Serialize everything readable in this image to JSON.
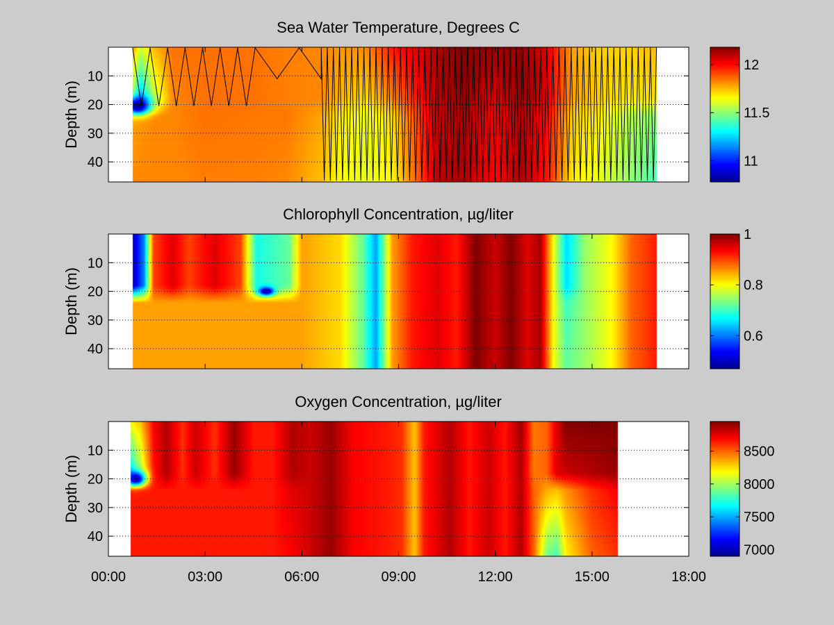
{
  "colors": {
    "figure_background": "#cccccc",
    "axes_background": "#ffffff",
    "colormap": "jet"
  },
  "x_axis": {
    "tick_labels": [
      "00:00",
      "03:00",
      "06:00",
      "09:00",
      "12:00",
      "15:00",
      "18:00"
    ],
    "range_hours": [
      0,
      18
    ]
  },
  "chart_data": [
    {
      "type": "heatmap",
      "title": "Sea Water Temperature, Degrees C",
      "xlabel": "",
      "ylabel": "Depth (m)",
      "y_ticks": [
        10,
        20,
        30,
        40
      ],
      "ylim": [
        0,
        47
      ],
      "y_reversed": true,
      "grid": "dotted horizontal at y ticks",
      "x_tick_labels_visible": false,
      "data_extent_hours": [
        0.75,
        17.0
      ],
      "clim": [
        10.78,
        12.18
      ],
      "colorbar_ticks": [
        11,
        11.5,
        12
      ],
      "colorbar_tick_labels": [
        "11",
        "11.5",
        "12"
      ],
      "profiles": [
        {
          "t": 0.75,
          "surface": 11.8,
          "upper": 11.5,
          "mid": 11.78,
          "bottom": 11.82
        },
        {
          "t": 1.0,
          "surface": 11.6,
          "upper": 11.2,
          "mid": 11.8,
          "bottom": 11.82
        },
        {
          "t": 1.4,
          "surface": 11.75,
          "upper": 11.55,
          "mid": 11.82,
          "bottom": 11.82
        },
        {
          "t": 2.0,
          "surface": 11.85,
          "upper": 11.82,
          "mid": 11.82,
          "bottom": 11.82
        },
        {
          "t": 3.0,
          "surface": 11.85,
          "upper": 11.85,
          "mid": 11.85,
          "bottom": 11.83
        },
        {
          "t": 4.5,
          "surface": 11.85,
          "upper": 11.85,
          "mid": 11.84,
          "bottom": 11.83
        },
        {
          "t": 5.5,
          "surface": 11.83,
          "upper": 11.83,
          "mid": 11.84,
          "bottom": 11.82
        },
        {
          "t": 6.6,
          "surface": 11.82,
          "upper": 11.82,
          "mid": 11.78,
          "bottom": 11.74
        },
        {
          "t": 7.2,
          "surface": 11.8,
          "upper": 11.75,
          "mid": 11.68,
          "bottom": 11.65
        },
        {
          "t": 8.0,
          "surface": 11.82,
          "upper": 11.7,
          "mid": 11.63,
          "bottom": 11.62
        },
        {
          "t": 8.8,
          "surface": 11.98,
          "upper": 11.82,
          "mid": 11.7,
          "bottom": 11.66
        },
        {
          "t": 9.6,
          "surface": 12.05,
          "upper": 11.98,
          "mid": 11.92,
          "bottom": 11.88
        },
        {
          "t": 10.2,
          "surface": 12.12,
          "upper": 12.1,
          "mid": 12.08,
          "bottom": 12.1
        },
        {
          "t": 11.0,
          "surface": 12.18,
          "upper": 12.15,
          "mid": 12.12,
          "bottom": 12.12
        },
        {
          "t": 12.0,
          "surface": 12.15,
          "upper": 12.05,
          "mid": 12.02,
          "bottom": 12.0
        },
        {
          "t": 12.8,
          "surface": 12.16,
          "upper": 12.15,
          "mid": 12.12,
          "bottom": 12.12
        },
        {
          "t": 13.6,
          "surface": 12.05,
          "upper": 12.05,
          "mid": 12.0,
          "bottom": 11.98
        },
        {
          "t": 14.4,
          "surface": 11.78,
          "upper": 11.78,
          "mid": 11.72,
          "bottom": 11.68
        },
        {
          "t": 15.2,
          "surface": 11.72,
          "upper": 11.72,
          "mid": 11.68,
          "bottom": 11.62
        },
        {
          "t": 16.2,
          "surface": 11.72,
          "upper": 11.68,
          "mid": 11.55,
          "bottom": 11.5
        },
        {
          "t": 17.0,
          "surface": 11.75,
          "upper": 11.7,
          "mid": 11.5,
          "bottom": 11.4
        }
      ],
      "blobs": [
        {
          "t": 0.9,
          "z": 20.5,
          "value": 10.78,
          "rt": 0.4,
          "rz": 3.0
        }
      ],
      "sampling_track": true
    },
    {
      "type": "heatmap",
      "title": "Chlorophyll Concentration, µg/liter",
      "xlabel": "",
      "ylabel": "Depth (m)",
      "y_ticks": [
        10,
        20,
        30,
        40
      ],
      "ylim": [
        0,
        47
      ],
      "y_reversed": true,
      "grid": "dotted horizontal at y ticks",
      "x_tick_labels_visible": false,
      "data_extent_hours": [
        0.75,
        17.0
      ],
      "clim": [
        0.47,
        1.0
      ],
      "colorbar_ticks": [
        0.6,
        0.8,
        1
      ],
      "colorbar_tick_labels": [
        "0.6",
        "0.8",
        "1"
      ],
      "profiles": [
        {
          "t": 0.75,
          "surface": 0.5,
          "upper": 0.5,
          "mid": 0.85,
          "bottom": 0.85
        },
        {
          "t": 1.1,
          "surface": 0.6,
          "upper": 0.6,
          "mid": 0.85,
          "bottom": 0.85
        },
        {
          "t": 1.4,
          "surface": 0.9,
          "upper": 0.9,
          "mid": 0.85,
          "bottom": 0.85
        },
        {
          "t": 2.0,
          "surface": 0.95,
          "upper": 0.95,
          "mid": 0.85,
          "bottom": 0.85
        },
        {
          "t": 2.5,
          "surface": 0.9,
          "upper": 0.9,
          "mid": 0.85,
          "bottom": 0.85
        },
        {
          "t": 3.3,
          "surface": 0.95,
          "upper": 0.95,
          "mid": 0.85,
          "bottom": 0.85
        },
        {
          "t": 4.1,
          "surface": 0.9,
          "upper": 0.9,
          "mid": 0.85,
          "bottom": 0.85
        },
        {
          "t": 4.6,
          "surface": 0.68,
          "upper": 0.68,
          "mid": 0.85,
          "bottom": 0.85
        },
        {
          "t": 5.6,
          "surface": 0.72,
          "upper": 0.72,
          "mid": 0.85,
          "bottom": 0.85
        },
        {
          "t": 6.0,
          "surface": 0.85,
          "upper": 0.85,
          "mid": 0.85,
          "bottom": 0.85
        },
        {
          "t": 7.2,
          "surface": 0.82,
          "upper": 0.82,
          "mid": 0.82,
          "bottom": 0.82
        },
        {
          "t": 7.9,
          "surface": 0.72,
          "upper": 0.72,
          "mid": 0.72,
          "bottom": 0.72
        },
        {
          "t": 8.3,
          "surface": 0.62,
          "upper": 0.62,
          "mid": 0.62,
          "bottom": 0.62
        },
        {
          "t": 8.8,
          "surface": 0.85,
          "upper": 0.85,
          "mid": 0.85,
          "bottom": 0.85
        },
        {
          "t": 9.4,
          "surface": 0.92,
          "upper": 0.92,
          "mid": 0.92,
          "bottom": 0.92
        },
        {
          "t": 10.2,
          "surface": 0.95,
          "upper": 0.95,
          "mid": 0.95,
          "bottom": 0.95
        },
        {
          "t": 10.8,
          "surface": 0.92,
          "upper": 0.92,
          "mid": 0.92,
          "bottom": 0.92
        },
        {
          "t": 11.4,
          "surface": 1.0,
          "upper": 1.0,
          "mid": 1.0,
          "bottom": 1.0
        },
        {
          "t": 12.0,
          "surface": 0.96,
          "upper": 0.96,
          "mid": 0.96,
          "bottom": 0.96
        },
        {
          "t": 12.5,
          "surface": 1.0,
          "upper": 1.0,
          "mid": 1.0,
          "bottom": 1.0
        },
        {
          "t": 13.0,
          "surface": 0.95,
          "upper": 0.95,
          "mid": 0.95,
          "bottom": 0.95
        },
        {
          "t": 13.4,
          "surface": 0.98,
          "upper": 0.98,
          "mid": 0.98,
          "bottom": 0.98
        },
        {
          "t": 13.8,
          "surface": 0.8,
          "upper": 0.8,
          "mid": 0.8,
          "bottom": 0.8
        },
        {
          "t": 14.2,
          "surface": 0.65,
          "upper": 0.65,
          "mid": 0.7,
          "bottom": 0.72
        },
        {
          "t": 14.8,
          "surface": 0.75,
          "upper": 0.75,
          "mid": 0.75,
          "bottom": 0.75
        },
        {
          "t": 15.6,
          "surface": 0.8,
          "upper": 0.8,
          "mid": 0.8,
          "bottom": 0.8
        },
        {
          "t": 16.2,
          "surface": 0.88,
          "upper": 0.88,
          "mid": 0.88,
          "bottom": 0.88
        },
        {
          "t": 17.0,
          "surface": 0.92,
          "upper": 0.92,
          "mid": 0.92,
          "bottom": 0.92
        }
      ],
      "blobs": [
        {
          "t": 4.9,
          "z": 20.0,
          "value": 0.47,
          "rt": 0.25,
          "rz": 1.5
        }
      ],
      "sampling_track": false
    },
    {
      "type": "heatmap",
      "title": "Oxygen Concentration, µg/liter",
      "xlabel": "",
      "ylabel": "Depth (m)",
      "y_ticks": [
        10,
        20,
        30,
        40
      ],
      "ylim": [
        0,
        47
      ],
      "y_reversed": true,
      "grid": "dotted horizontal at y ticks",
      "x_tick_labels_visible": true,
      "data_extent_hours": [
        0.7,
        15.8
      ],
      "clim": [
        6900,
        8950
      ],
      "colorbar_ticks": [
        7000,
        7500,
        8000,
        8500
      ],
      "colorbar_tick_labels": [
        "7000",
        "7500",
        "8000",
        "8500"
      ],
      "profiles": [
        {
          "t": 0.7,
          "surface": 8200,
          "upper": 7600,
          "mid": 8650,
          "bottom": 8650
        },
        {
          "t": 1.0,
          "surface": 8300,
          "upper": 8000,
          "mid": 8650,
          "bottom": 8650
        },
        {
          "t": 1.4,
          "surface": 8700,
          "upper": 8650,
          "mid": 8650,
          "bottom": 8650
        },
        {
          "t": 1.8,
          "surface": 8850,
          "upper": 8850,
          "mid": 8650,
          "bottom": 8650
        },
        {
          "t": 2.3,
          "surface": 8600,
          "upper": 8600,
          "mid": 8650,
          "bottom": 8650
        },
        {
          "t": 2.7,
          "surface": 8800,
          "upper": 8800,
          "mid": 8650,
          "bottom": 8650
        },
        {
          "t": 3.3,
          "surface": 8600,
          "upper": 8600,
          "mid": 8650,
          "bottom": 8650
        },
        {
          "t": 3.9,
          "surface": 8900,
          "upper": 8900,
          "mid": 8650,
          "bottom": 8650
        },
        {
          "t": 4.5,
          "surface": 8650,
          "upper": 8650,
          "mid": 8650,
          "bottom": 8650
        },
        {
          "t": 5.1,
          "surface": 8650,
          "upper": 8650,
          "mid": 8650,
          "bottom": 8650
        },
        {
          "t": 5.7,
          "surface": 8850,
          "upper": 8850,
          "mid": 8750,
          "bottom": 8700
        },
        {
          "t": 6.3,
          "surface": 8800,
          "upper": 8800,
          "mid": 8800,
          "bottom": 8800
        },
        {
          "t": 6.9,
          "surface": 8900,
          "upper": 8900,
          "mid": 8900,
          "bottom": 8900
        },
        {
          "t": 7.6,
          "surface": 8700,
          "upper": 8700,
          "mid": 8700,
          "bottom": 8700
        },
        {
          "t": 8.6,
          "surface": 8650,
          "upper": 8650,
          "mid": 8650,
          "bottom": 8650
        },
        {
          "t": 9.1,
          "surface": 8600,
          "upper": 8600,
          "mid": 8600,
          "bottom": 8600
        },
        {
          "t": 9.5,
          "surface": 8300,
          "upper": 8300,
          "mid": 8300,
          "bottom": 8300
        },
        {
          "t": 9.8,
          "surface": 8650,
          "upper": 8650,
          "mid": 8650,
          "bottom": 8650
        },
        {
          "t": 10.6,
          "surface": 8850,
          "upper": 8850,
          "mid": 8850,
          "bottom": 8850
        },
        {
          "t": 11.2,
          "surface": 8650,
          "upper": 8650,
          "mid": 8650,
          "bottom": 8650
        },
        {
          "t": 11.8,
          "surface": 8800,
          "upper": 8800,
          "mid": 8800,
          "bottom": 8800
        },
        {
          "t": 12.3,
          "surface": 8650,
          "upper": 8650,
          "mid": 8650,
          "bottom": 8650
        },
        {
          "t": 12.8,
          "surface": 8900,
          "upper": 8850,
          "mid": 8850,
          "bottom": 8850
        },
        {
          "t": 13.2,
          "surface": 8450,
          "upper": 8450,
          "mid": 8500,
          "bottom": 8500
        },
        {
          "t": 13.6,
          "surface": 8500,
          "upper": 8500,
          "mid": 8350,
          "bottom": 7900
        },
        {
          "t": 13.9,
          "surface": 8750,
          "upper": 8750,
          "mid": 8300,
          "bottom": 7800
        },
        {
          "t": 14.2,
          "surface": 8950,
          "upper": 8800,
          "mid": 8400,
          "bottom": 8200
        },
        {
          "t": 15.0,
          "surface": 8950,
          "upper": 8850,
          "mid": 8600,
          "bottom": 8500
        },
        {
          "t": 15.8,
          "surface": 8950,
          "upper": 8900,
          "mid": 8700,
          "bottom": 8600
        }
      ],
      "blobs": [
        {
          "t": 0.85,
          "z": 20.0,
          "value": 6950,
          "rt": 0.3,
          "rz": 2.5
        }
      ],
      "sampling_track": false
    }
  ]
}
